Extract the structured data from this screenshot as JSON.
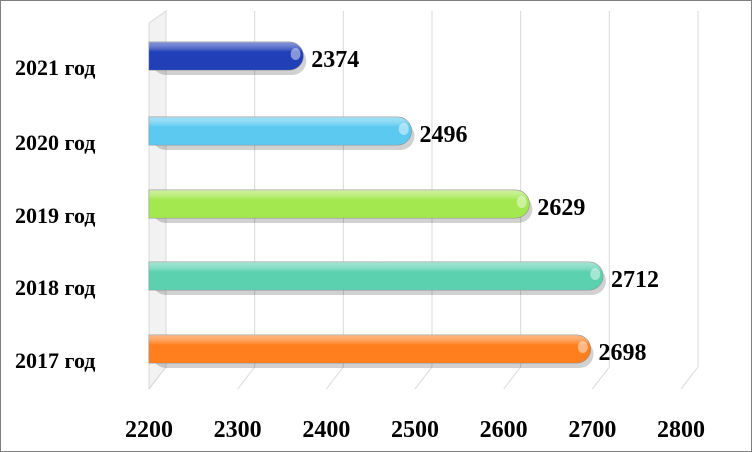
{
  "chart_data": {
    "type": "bar",
    "orientation": "horizontal",
    "categories": [
      "2017 год",
      "2018 год",
      "2019 год",
      "2020 год",
      "2021 год"
    ],
    "values": [
      2698,
      2712,
      2629,
      2496,
      2374
    ],
    "colors": [
      "#ff7f1f",
      "#5cd1b0",
      "#a3e84f",
      "#5cc9f1",
      "#2140b8"
    ],
    "xlim": [
      2200,
      2800
    ],
    "xticks": [
      2200,
      2300,
      2400,
      2500,
      2600,
      2700,
      2800
    ],
    "grid": true,
    "legend": "none",
    "title": "",
    "xlabel": "",
    "ylabel": ""
  }
}
